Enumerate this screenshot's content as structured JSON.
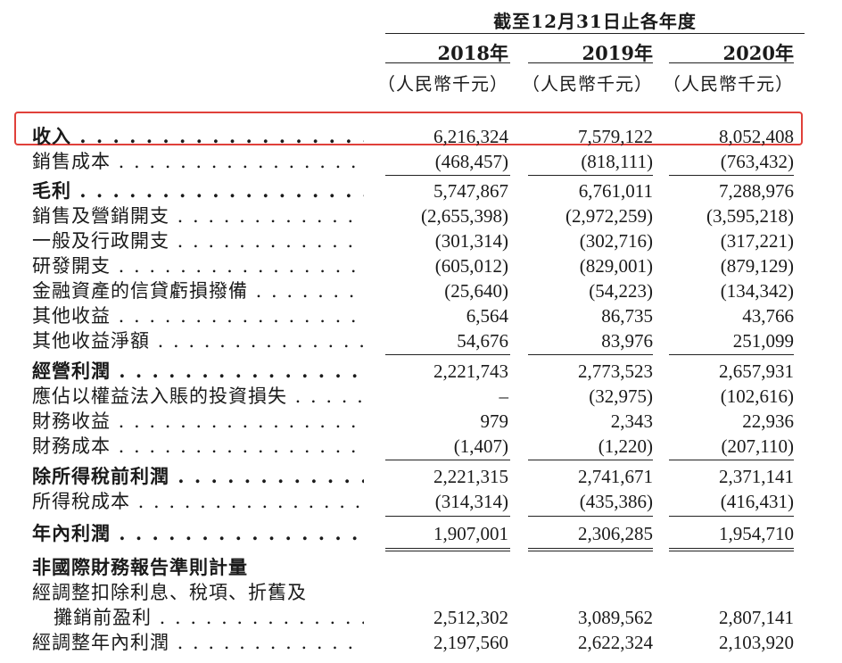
{
  "header": {
    "period": "截至12月31日止各年度",
    "years": [
      "2018年",
      "2019年",
      "2020年"
    ],
    "unit": "（人民幣千元）"
  },
  "rows": [
    {
      "label": "收入",
      "v": [
        "6,216,324",
        "7,579,122",
        "8,052,408"
      ]
    },
    {
      "label": "銷售成本",
      "v": [
        "(468,457)",
        "(818,111)",
        "(763,432)"
      ]
    },
    {
      "label": "毛利",
      "v": [
        "5,747,867",
        "6,761,011",
        "7,288,976"
      ]
    },
    {
      "label": "銷售及營銷開支",
      "v": [
        "(2,655,398)",
        "(2,972,259)",
        "(3,595,218)"
      ]
    },
    {
      "label": "一般及行政開支",
      "v": [
        "(301,314)",
        "(302,716)",
        "(317,221)"
      ]
    },
    {
      "label": "研發開支",
      "v": [
        "(605,012)",
        "(829,001)",
        "(879,129)"
      ]
    },
    {
      "label": "金融資產的信貸虧損撥備",
      "v": [
        "(25,640)",
        "(54,223)",
        "(134,342)"
      ]
    },
    {
      "label": "其他收益",
      "v": [
        "6,564",
        "86,735",
        "43,766"
      ]
    },
    {
      "label": "其他收益淨額",
      "v": [
        "54,676",
        "83,976",
        "251,099"
      ]
    },
    {
      "label": "經營利潤",
      "v": [
        "2,221,743",
        "2,773,523",
        "2,657,931"
      ]
    },
    {
      "label": "應佔以權益法入賬的投資損失",
      "v": [
        "–",
        "(32,975)",
        "(102,616)"
      ]
    },
    {
      "label": "財務收益",
      "v": [
        "979",
        "2,343",
        "22,936"
      ]
    },
    {
      "label": "財務成本",
      "v": [
        "(1,407)",
        "(1,220)",
        "(207,110)"
      ]
    },
    {
      "label": "除所得稅前利潤",
      "v": [
        "2,221,315",
        "2,741,671",
        "2,371,141"
      ]
    },
    {
      "label": "所得稅成本",
      "v": [
        "(314,314)",
        "(435,386)",
        "(416,431)"
      ]
    },
    {
      "label": "年內利潤",
      "v": [
        "1,907,001",
        "2,306,285",
        "1,954,710"
      ]
    }
  ],
  "non_ifrs": {
    "heading": "非國際財務報告準則計量",
    "ebitda_line1": "經調整扣除利息、稅項、折舊及",
    "ebitda_line2": "攤銷前盈利",
    "ebitda_v": [
      "2,512,302",
      "3,089,562",
      "2,807,141"
    ],
    "adj_profit_label": "經調整年內利潤",
    "adj_profit_v": [
      "2,197,560",
      "2,622,324",
      "2,103,920"
    ]
  },
  "highlight_color": "#e0403a"
}
